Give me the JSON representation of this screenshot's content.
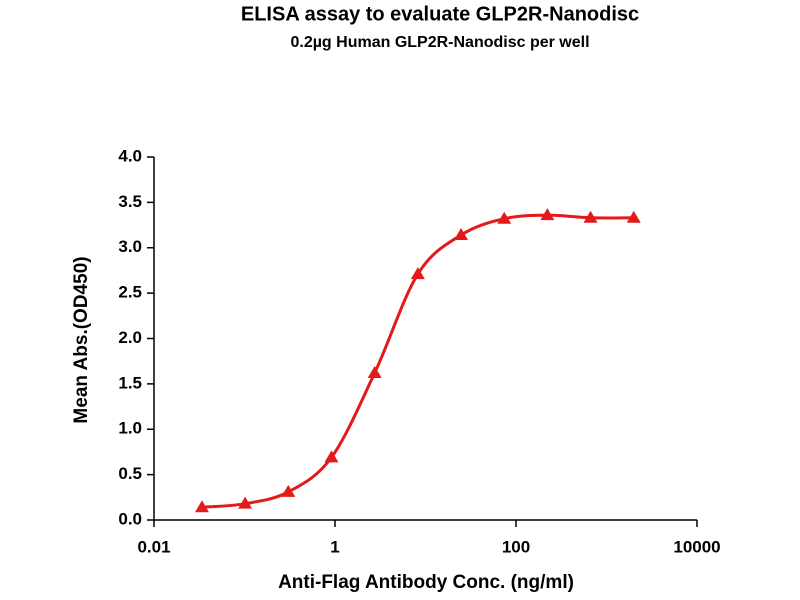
{
  "chart_data": {
    "type": "scatter",
    "title": "ELISA assay to evaluate GLP2R-Nanodisc",
    "subtitle": "0.2µg Human GLP2R-Nanodisc per well",
    "x_label": "Anti-Flag Antibody Conc. (ng/ml)",
    "y_label": "Mean Abs.(OD450)",
    "x_scale": "log",
    "xlim": [
      0.01,
      10000
    ],
    "xticks": [
      0.01,
      1,
      100,
      10000
    ],
    "ylim": [
      0,
      4
    ],
    "yticks": [
      {
        "value": 0,
        "label": "0.0"
      },
      0.5,
      {
        "value": 1,
        "label": "1.0"
      },
      1.5,
      {
        "value": 2,
        "label": "2.0"
      },
      2.5,
      {
        "value": 3,
        "label": "3.0"
      },
      3.5,
      {
        "value": 4,
        "label": "4.0"
      }
    ],
    "series": [
      {
        "color": "#e31a1c",
        "x": [
          0.0339,
          0.1016,
          0.3048,
          0.9145,
          2.743,
          8.23,
          24.69,
          74.07,
          222.2,
          666.7,
          2000
        ],
        "values": [
          0.14,
          0.18,
          0.31,
          0.69,
          1.62,
          2.71,
          3.14,
          3.32,
          3.36,
          3.33,
          3.33
        ]
      }
    ]
  }
}
